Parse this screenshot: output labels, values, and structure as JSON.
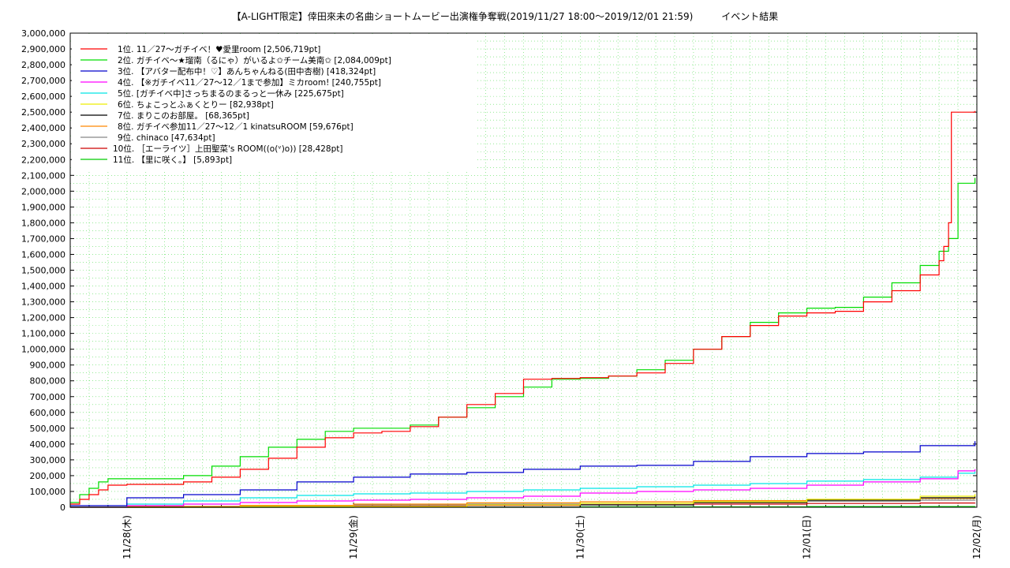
{
  "chart_data": {
    "type": "line",
    "title": "【A-LIGHT限定】倖田來未の名曲ショートムービー出演権争奪戦(2019/11/27 18:00〜2019/12/01 21:59)　　　イベント結果",
    "xlabel": "",
    "ylabel": "",
    "ylim": [
      0,
      3000000
    ],
    "y_tick_step": 100000,
    "y_tick_labels": [
      "0",
      "100,000",
      "200,000",
      "300,000",
      "400,000",
      "500,000",
      "600,000",
      "700,000",
      "800,000",
      "900,000",
      "1,000,000",
      "1,100,000",
      "1,200,000",
      "1,300,000",
      "1,400,000",
      "1,500,000",
      "1,600,000",
      "1,700,000",
      "1,800,000",
      "1,900,000",
      "2,000,000",
      "2,100,000",
      "2,200,000",
      "2,300,000",
      "2,400,000",
      "2,500,000",
      "2,600,000",
      "2,700,000",
      "2,800,000",
      "2,900,000",
      "3,000,000"
    ],
    "x_range_hours": [
      18,
      114
    ],
    "x_ticks": [
      {
        "hour": 24,
        "label": "11/28(木)"
      },
      {
        "hour": 48,
        "label": "11/29(金)"
      },
      {
        "hour": 72,
        "label": "11/30(土)"
      },
      {
        "hour": 96,
        "label": "12/01(日)"
      },
      {
        "hour": 120,
        "label": "12/02(月)"
      }
    ],
    "grid": true,
    "legend_position": "top-left",
    "series": [
      {
        "name": "1位. 11／27〜ガチイベ！♥愛里room [2,506,719pt]",
        "color": "#ff0000",
        "x": [
          18,
          19,
          20,
          21,
          22,
          24,
          27,
          30,
          33,
          36,
          39,
          42,
          45,
          48,
          51,
          54,
          57,
          60,
          63,
          66,
          69,
          72,
          75,
          78,
          81,
          84,
          87,
          90,
          93,
          96,
          99,
          102,
          105,
          108,
          110,
          110.5,
          111,
          111.3,
          113.8
        ],
        "y": [
          20000,
          50000,
          80000,
          110000,
          140000,
          145000,
          145000,
          160000,
          190000,
          240000,
          310000,
          380000,
          440000,
          470000,
          480000,
          510000,
          570000,
          650000,
          720000,
          810000,
          815000,
          820000,
          830000,
          850000,
          910000,
          1000000,
          1080000,
          1150000,
          1210000,
          1230000,
          1240000,
          1300000,
          1370000,
          1470000,
          1560000,
          1650000,
          1800000,
          2500000,
          2506719
        ]
      },
      {
        "name": "2位. ガチイベ〜★瑠南（るにゃ）がいるよ✩チーム美南✩ [2,084,009pt]",
        "color": "#00dd00",
        "x": [
          18,
          19,
          20,
          21,
          22,
          24,
          27,
          30,
          33,
          36,
          39,
          42,
          45,
          48,
          51,
          54,
          57,
          60,
          63,
          66,
          69,
          72,
          75,
          78,
          81,
          84,
          87,
          90,
          93,
          96,
          99,
          102,
          105,
          108,
          110,
          111,
          111.5,
          112,
          113.8
        ],
        "y": [
          30000,
          80000,
          120000,
          160000,
          180000,
          180000,
          180000,
          200000,
          260000,
          320000,
          380000,
          430000,
          480000,
          500000,
          500000,
          520000,
          570000,
          630000,
          700000,
          760000,
          810000,
          815000,
          830000,
          870000,
          930000,
          1000000,
          1080000,
          1170000,
          1230000,
          1260000,
          1265000,
          1330000,
          1420000,
          1530000,
          1620000,
          1700000,
          1700000,
          2050000,
          2084009
        ]
      },
      {
        "name": "3位. 【アバター配布中！♡】あんちゃんねる(田中杏樹) [418,324pt]",
        "color": "#0000cc",
        "x": [
          18,
          24,
          30,
          36,
          42,
          48,
          54,
          60,
          66,
          72,
          78,
          84,
          90,
          96,
          102,
          108,
          113.8
        ],
        "y": [
          10000,
          60000,
          80000,
          110000,
          160000,
          190000,
          210000,
          220000,
          240000,
          260000,
          265000,
          290000,
          320000,
          340000,
          350000,
          390000,
          418324
        ]
      },
      {
        "name": "4位. 【※ガチイベ11／27〜12／1まで参加】ミカroom! [240,755pt]",
        "color": "#ff00ff",
        "x": [
          18,
          24,
          30,
          36,
          42,
          48,
          54,
          60,
          66,
          72,
          78,
          84,
          90,
          96,
          102,
          108,
          112,
          113.8
        ],
        "y": [
          0,
          10000,
          20000,
          30000,
          40000,
          45000,
          50000,
          60000,
          70000,
          90000,
          100000,
          110000,
          120000,
          140000,
          160000,
          180000,
          230000,
          240755
        ]
      },
      {
        "name": "5位. [ガチイベ中]さっちまるのまるっと一休み [225,675pt]",
        "color": "#00e5e5",
        "x": [
          18,
          24,
          30,
          36,
          42,
          48,
          54,
          60,
          66,
          72,
          78,
          84,
          90,
          96,
          102,
          108,
          112,
          113.8
        ],
        "y": [
          0,
          20000,
          40000,
          60000,
          75000,
          85000,
          90000,
          100000,
          110000,
          120000,
          130000,
          140000,
          150000,
          165000,
          175000,
          190000,
          215000,
          225675
        ]
      },
      {
        "name": "6位. ちょこっとふぁくとりー [82,938pt]",
        "color": "#eeee00",
        "x": [
          18,
          36,
          60,
          72,
          84,
          96,
          108,
          113.8
        ],
        "y": [
          0,
          5000,
          15000,
          25000,
          35000,
          50000,
          70000,
          82938
        ]
      },
      {
        "name": "7位. まりこのお部屋。 [68,365pt]",
        "color": "#000000",
        "x": [
          18,
          60,
          70,
          72,
          84,
          96,
          108,
          113.8
        ],
        "y": [
          0,
          0,
          0,
          15000,
          30000,
          45000,
          60000,
          68365
        ]
      },
      {
        "name": "8位. ガチイベ参加11／27〜12／1 kinatsuROOM [59,676pt]",
        "color": "#ff8800",
        "x": [
          18,
          24,
          36,
          48,
          60,
          72,
          84,
          96,
          108,
          113.8
        ],
        "y": [
          0,
          5000,
          12000,
          20000,
          28000,
          35000,
          42000,
          50000,
          56000,
          59676
        ]
      },
      {
        "name": "9位. chinaco [47,634pt]",
        "color": "#888888",
        "x": [
          18,
          24,
          36,
          48,
          60,
          72,
          84,
          96,
          108,
          113.8
        ],
        "y": [
          0,
          5000,
          10000,
          15000,
          20000,
          25000,
          30000,
          38000,
          45000,
          47634
        ]
      },
      {
        "name": "10位. ［エーライツ］上田聖菜's ROOM((o(ᵛ)o)) [28,428pt]",
        "color": "#cc0000",
        "x": [
          18,
          30,
          48,
          60,
          72,
          84,
          96,
          108,
          113.8
        ],
        "y": [
          0,
          3000,
          8000,
          12000,
          16000,
          20000,
          24000,
          27000,
          28428
        ]
      },
      {
        "name": "11位. 【里に咲く。】 [5,893pt]",
        "color": "#00cc00",
        "x": [
          18,
          48,
          72,
          96,
          113.8
        ],
        "y": [
          0,
          1000,
          2500,
          4500,
          5893
        ]
      }
    ]
  }
}
